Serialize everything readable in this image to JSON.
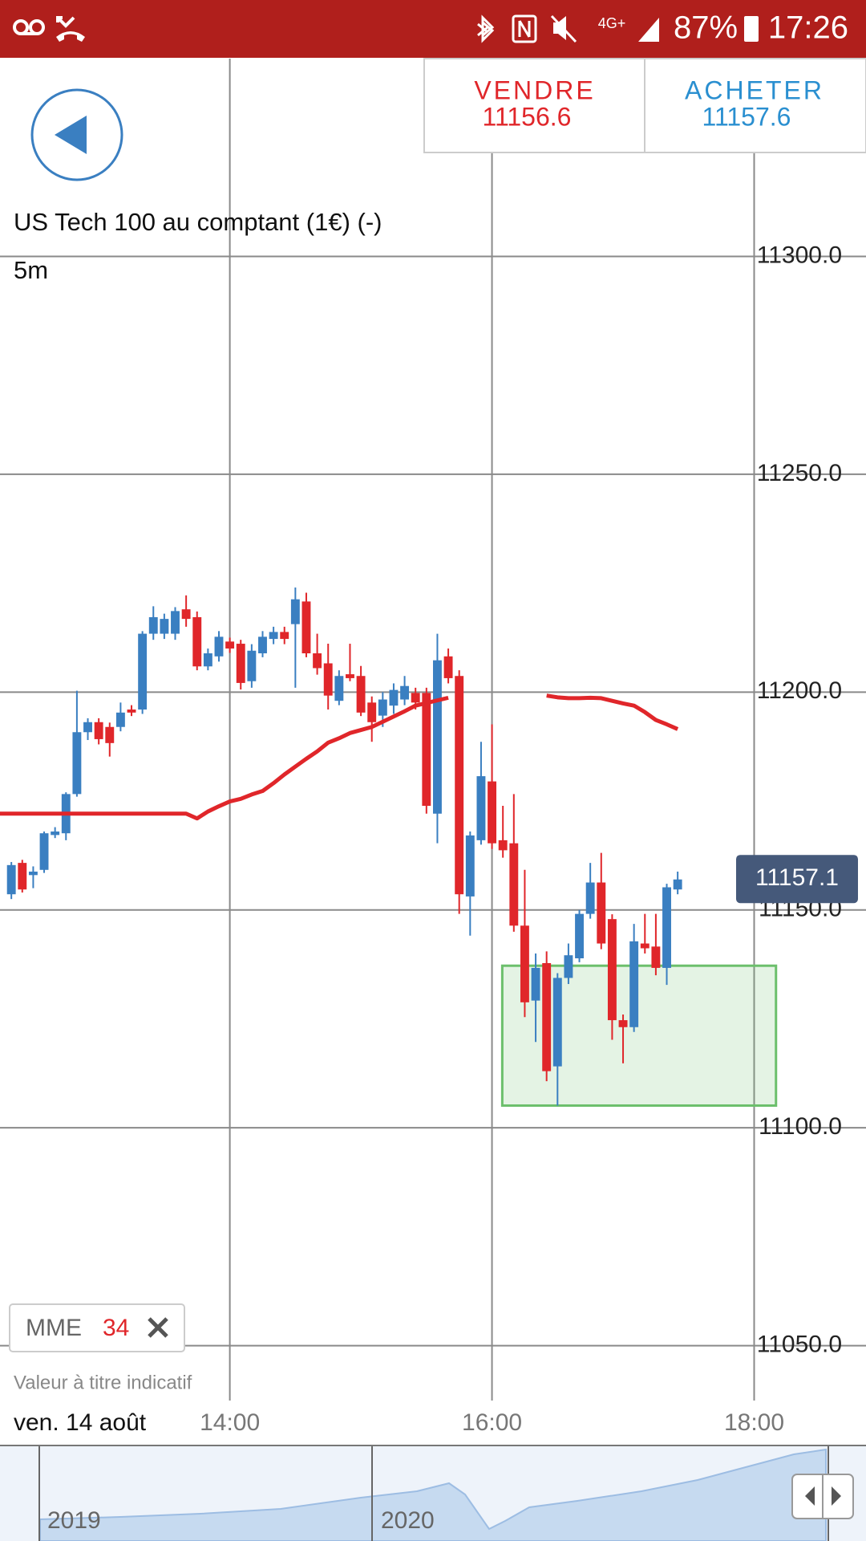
{
  "status_bar": {
    "network": "4G+",
    "battery": "87%",
    "time": "17:26"
  },
  "trade": {
    "sell_label": "VENDRE",
    "sell_price": "11156.6",
    "buy_label": "ACHETER",
    "buy_price": "11157.6"
  },
  "footer": {
    "note": "Valeur à titre indicatif",
    "date": "ven. 14 août"
  },
  "navigator": {
    "labels": [
      "2019",
      "2020"
    ]
  },
  "chart_data": {
    "type": "candlestick",
    "title": "US Tech 100 au comptant (1€) (-)",
    "subtitle": "5m",
    "up_color": "#3a7fc1",
    "down_color": "#e0262a",
    "x": [
      740,
      745,
      750,
      755,
      760,
      765,
      770,
      775,
      780,
      785,
      790,
      795,
      800,
      805,
      810,
      815,
      820,
      825,
      830,
      835,
      840,
      845,
      850,
      855,
      860,
      865,
      870,
      875,
      880,
      885,
      890,
      895,
      900,
      905,
      910,
      915,
      920,
      925,
      930,
      935,
      940,
      945,
      950,
      955,
      960,
      965,
      970,
      975,
      980,
      985,
      990,
      995,
      1000,
      1005,
      1010,
      1015,
      1020,
      1025,
      1030,
      1035,
      1040,
      1045
    ],
    "open": [
      11153.6,
      11160.8,
      11158.0,
      11159.2,
      11167.2,
      11167.6,
      11176.6,
      11190.8,
      11193.1,
      11192.0,
      11192.0,
      11196.0,
      11196.0,
      11213.4,
      11213.4,
      11213.4,
      11219.0,
      11217.2,
      11205.9,
      11208.2,
      11211.6,
      11211.1,
      11202.5,
      11208.9,
      11212.2,
      11213.8,
      11215.6,
      11220.8,
      11208.9,
      11206.6,
      11198.0,
      11204.1,
      11203.7,
      11197.6,
      11194.6,
      11196.9,
      11198.3,
      11199.8,
      11199.8,
      11172.1,
      11208.2,
      11203.7,
      11153.1,
      11166.0,
      11179.5,
      11166.0,
      11165.3,
      11146.4,
      11129.2,
      11137.8,
      11114.1,
      11134.4,
      11138.9,
      11149.1,
      11156.3,
      11147.9,
      11124.7,
      11123.1,
      11142.3,
      11141.6,
      11136.7,
      11154.7
    ],
    "high": [
      11161.0,
      11161.5,
      11160.0,
      11168.0,
      11169.0,
      11177.0,
      11200.3,
      11194.0,
      11194.0,
      11193.0,
      11197.6,
      11197.0,
      11214.0,
      11219.7,
      11218.0,
      11219.5,
      11222.2,
      11218.5,
      11210.0,
      11214.0,
      11212.5,
      11212.0,
      11211.0,
      11214.0,
      11215.0,
      11215.0,
      11224.0,
      11222.8,
      11213.4,
      11211.1,
      11205.0,
      11211.1,
      11206.0,
      11199.0,
      11200.0,
      11202.0,
      11203.7,
      11201.0,
      11201.0,
      11213.4,
      11210.0,
      11205.0,
      11168.0,
      11188.6,
      11192.6,
      11173.9,
      11176.6,
      11159.2,
      11140.0,
      11140.5,
      11135.5,
      11142.3,
      11150.0,
      11160.8,
      11163.1,
      11149.0,
      11126.0,
      11146.8,
      11149.1,
      11149.1,
      11156.0,
      11158.8
    ],
    "low": [
      11152.5,
      11154.0,
      11155.0,
      11158.5,
      11166.5,
      11166.0,
      11176.0,
      11189.0,
      11188.0,
      11185.2,
      11191.0,
      11194.5,
      11195.0,
      11212.0,
      11212.2,
      11212.0,
      11215.0,
      11205.0,
      11205.0,
      11207.0,
      11209.0,
      11200.6,
      11201.0,
      11208.0,
      11211.0,
      11211.0,
      11201.0,
      11208.0,
      11204.0,
      11196.0,
      11197.0,
      11202.5,
      11194.5,
      11188.6,
      11192.0,
      11195.0,
      11197.0,
      11196.0,
      11172.1,
      11165.3,
      11202.0,
      11149.1,
      11144.1,
      11165.0,
      11164.0,
      11162.0,
      11145.0,
      11125.4,
      11119.7,
      11110.7,
      11105.1,
      11133.0,
      11138.0,
      11148.0,
      11141.0,
      11120.2,
      11114.8,
      11122.0,
      11140.0,
      11135.0,
      11132.8,
      11153.6
    ],
    "close": [
      11160.3,
      11154.7,
      11158.8,
      11167.6,
      11168.0,
      11176.6,
      11190.8,
      11193.1,
      11189.2,
      11188.3,
      11195.3,
      11195.3,
      11213.4,
      11217.2,
      11216.8,
      11218.6,
      11216.8,
      11205.9,
      11208.9,
      11212.7,
      11210.0,
      11202.1,
      11209.5,
      11212.7,
      11213.8,
      11212.2,
      11221.3,
      11208.9,
      11205.5,
      11199.2,
      11203.7,
      11203.2,
      11195.3,
      11193.1,
      11198.3,
      11200.5,
      11201.4,
      11197.6,
      11173.9,
      11207.3,
      11203.2,
      11153.6,
      11167.1,
      11180.7,
      11165.3,
      11163.7,
      11146.4,
      11128.8,
      11136.7,
      11113.0,
      11134.4,
      11139.6,
      11149.1,
      11156.3,
      11142.3,
      11124.7,
      11123.1,
      11142.8,
      11141.2,
      11136.7,
      11155.2,
      11157.0
    ],
    "indicator": {
      "name": "MME",
      "period": 34,
      "color": "#e0262a",
      "values": [
        11172.1,
        11172.1,
        11172.1,
        11172.1,
        11172.1,
        11172.1,
        11172.1,
        11172.1,
        11172.1,
        11172.1,
        11172.1,
        11172.1,
        11172.1,
        11172.1,
        11172.1,
        11172.1,
        11172.1,
        11171.0,
        11172.6,
        11173.8,
        11174.9,
        11175.5,
        11176.5,
        11177.3,
        11179.1,
        11181.1,
        11182.9,
        11184.7,
        11186.4,
        11188.4,
        11189.4,
        11190.6,
        11191.3,
        11192.0,
        11193.2,
        11194.4,
        11195.6,
        11196.9,
        11197.5,
        11198.1,
        11198.7,
        null,
        null,
        null,
        null,
        null,
        null,
        null,
        null,
        11199.2,
        11198.8,
        11198.6,
        11198.6,
        11198.7,
        11198.6,
        11198.0,
        11197.4,
        11196.9,
        11195.4,
        11193.6,
        11192.6,
        11191.5
      ]
    },
    "zone": {
      "x": [
        964.7,
        1090
      ],
      "y": [
        11105.1,
        11137.2
      ],
      "color": "#6cbf6c"
    },
    "last_price": 11157.1,
    "xlim": [
      734.8,
      1131.2
    ],
    "ylim": [
      11037.4,
      11345.4
    ],
    "xticks": [
      {
        "value": 840,
        "label": "14:00"
      },
      {
        "value": 960,
        "label": "16:00"
      },
      {
        "value": 1080,
        "label": "18:00"
      }
    ],
    "yticks": [
      {
        "value": 11050,
        "label": "11050.0"
      },
      {
        "value": 11100,
        "label": "11100.0"
      },
      {
        "value": 11150,
        "label": "11150.0"
      },
      {
        "value": 11200,
        "label": "11200.0"
      },
      {
        "value": 11250,
        "label": "11250.0"
      },
      {
        "value": 11300,
        "label": "11300.0"
      }
    ],
    "grid": true
  }
}
